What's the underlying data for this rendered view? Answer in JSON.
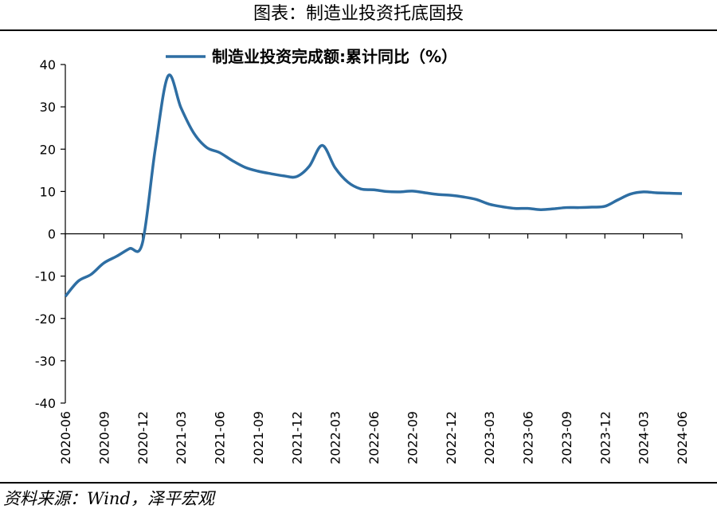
{
  "header": {
    "title": "图表：制造业投资托底固投"
  },
  "footer": {
    "source": "资料来源：Wind，泽平宏观"
  },
  "chart_data": {
    "type": "line",
    "title": "",
    "xlabel": "",
    "ylabel": "",
    "ylim": [
      -40,
      40
    ],
    "yticks": [
      40,
      30,
      20,
      10,
      0,
      -10,
      -20,
      -30,
      -40
    ],
    "xtick_labels": [
      "2020-06",
      "2020-09",
      "2020-12",
      "2021-03",
      "2021-06",
      "2021-09",
      "2021-12",
      "2022-03",
      "2022-06",
      "2022-09",
      "2022-12",
      "2023-03",
      "2023-06",
      "2023-09",
      "2023-12",
      "2024-03",
      "2024-06"
    ],
    "grid": false,
    "legend_position": "top",
    "series": [
      {
        "name": "制造业投资完成额:累计同比（%）",
        "color": "#2E6EA3",
        "x": [
          "2020-06",
          "2020-07",
          "2020-08",
          "2020-09",
          "2020-10",
          "2020-11",
          "2020-12",
          "2021-01",
          "2021-02",
          "2021-03",
          "2021-04",
          "2021-05",
          "2021-06",
          "2021-07",
          "2021-08",
          "2021-09",
          "2021-10",
          "2021-11",
          "2021-12",
          "2022-01",
          "2022-02",
          "2022-03",
          "2022-04",
          "2022-05",
          "2022-06",
          "2022-07",
          "2022-08",
          "2022-09",
          "2022-10",
          "2022-11",
          "2022-12",
          "2023-01",
          "2023-02",
          "2023-03",
          "2023-04",
          "2023-05",
          "2023-06",
          "2023-07",
          "2023-08",
          "2023-09",
          "2023-10",
          "2023-11",
          "2023-12",
          "2024-01",
          "2024-02",
          "2024-03",
          "2024-04",
          "2024-05",
          "2024-06"
        ],
        "values": [
          -14.8,
          -11.2,
          -9.6,
          -6.9,
          -5.3,
          -3.5,
          -2.2,
          20,
          37.3,
          29.8,
          23.8,
          20.4,
          19.2,
          17.3,
          15.7,
          14.8,
          14.2,
          13.7,
          13.5,
          16,
          20.9,
          15.6,
          12.2,
          10.6,
          10.4,
          10,
          9.9,
          10.1,
          9.7,
          9.3,
          9.1,
          8.7,
          8.1,
          7,
          6.4,
          6,
          6,
          5.7,
          5.9,
          6.2,
          6.2,
          6.3,
          6.5,
          8,
          9.4,
          9.9,
          9.7,
          9.6,
          9.5
        ]
      }
    ]
  }
}
